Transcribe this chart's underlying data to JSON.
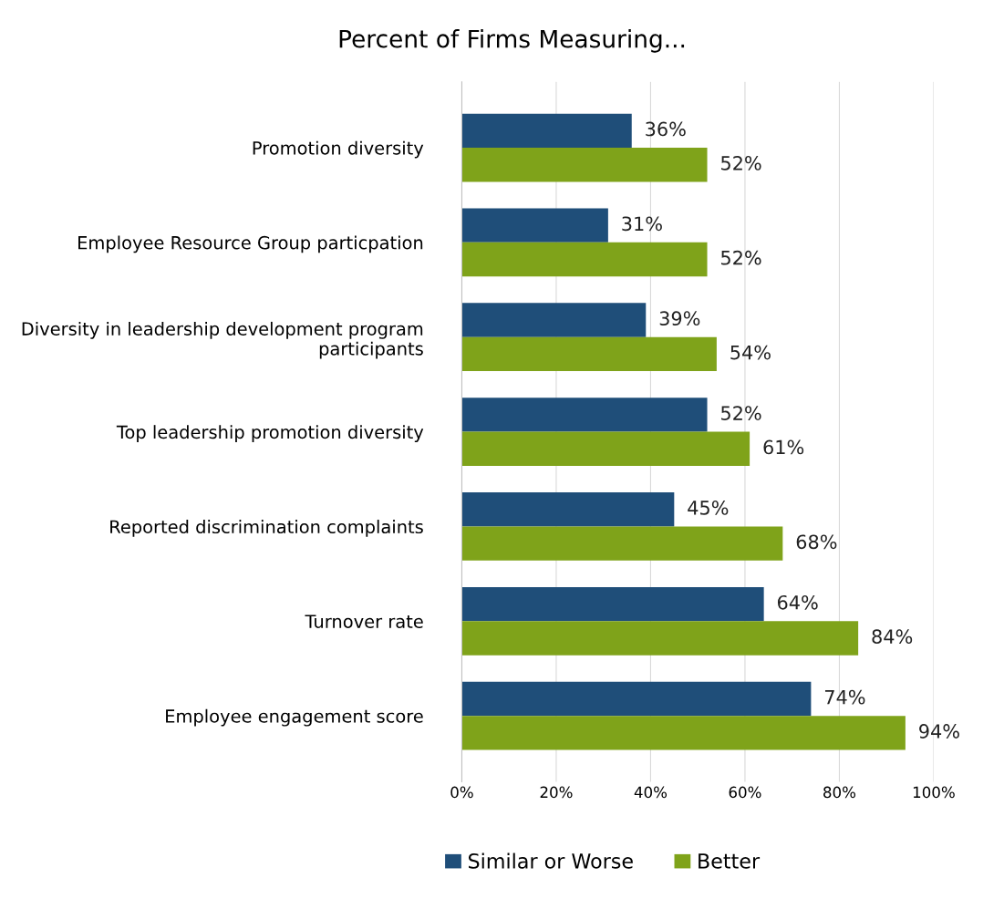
{
  "chart_data": {
    "type": "bar",
    "orientation": "horizontal",
    "title": "Percent of Firms Measuring...",
    "categories": [
      "Promotion diversity",
      "Employee Resource Group particpation",
      "Diversity in leadership development program participants",
      "Top leadership promotion diversity",
      "Reported discrimination complaints",
      "Turnover rate",
      "Employee engagement score"
    ],
    "series": [
      {
        "name": "Similar or Worse",
        "color": "#1f4e79",
        "values": [
          36,
          31,
          39,
          52,
          45,
          64,
          74
        ],
        "value_labels": [
          "36%",
          "31%",
          "39%",
          "52%",
          "45%",
          "64%",
          "74%"
        ]
      },
      {
        "name": "Better",
        "color": "#7fa31a",
        "values": [
          52,
          52,
          54,
          61,
          68,
          84,
          94
        ],
        "value_labels": [
          "52%",
          "52%",
          "54%",
          "61%",
          "68%",
          "84%",
          "94%"
        ]
      }
    ],
    "xlim": [
      0,
      100
    ],
    "xticks": [
      {
        "value": 0,
        "label": "0%"
      },
      {
        "value": 20,
        "label": "20%"
      },
      {
        "value": 40,
        "label": "40%"
      },
      {
        "value": 60,
        "label": "60%"
      },
      {
        "value": 80,
        "label": "80%"
      },
      {
        "value": 100,
        "label": "100%"
      }
    ],
    "grid": "x",
    "legend": "bottom"
  }
}
